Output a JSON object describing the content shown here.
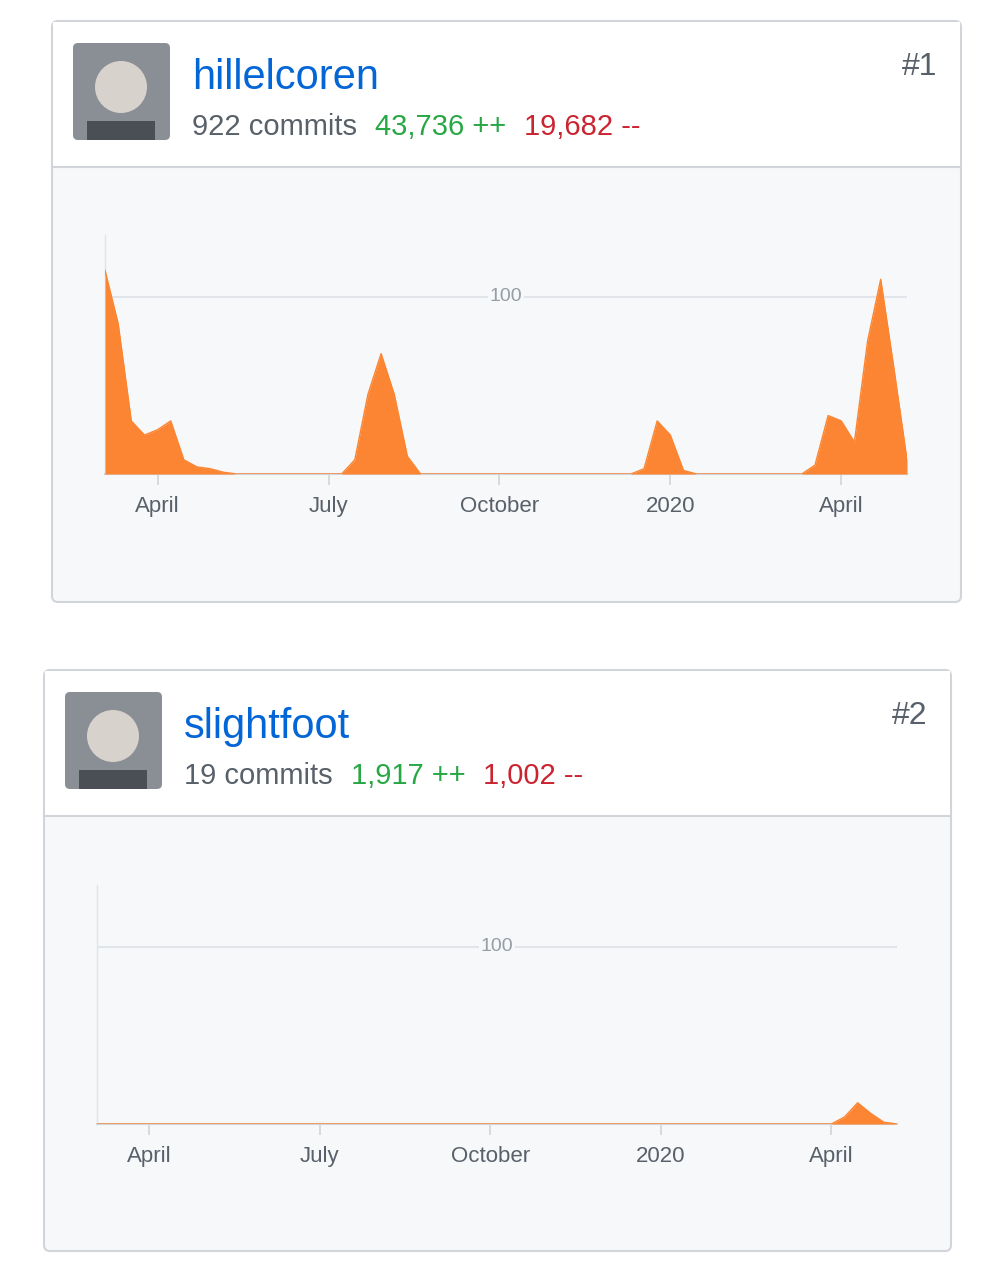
{
  "chart_data": [
    {
      "type": "area",
      "title": "hillelcoren",
      "subtitle": "922 commits",
      "annotations": [
        {
          "text": "43,736 ++",
          "color": "#28a745"
        },
        {
          "text": "19,682 --",
          "color": "#cb2431"
        },
        {
          "text": "#1"
        }
      ],
      "categories": [
        null,
        null,
        null,
        null,
        "April",
        null,
        null,
        null,
        null,
        null,
        null,
        null,
        null,
        null,
        null,
        null,
        null,
        "July",
        null,
        null,
        null,
        null,
        null,
        null,
        null,
        null,
        null,
        null,
        null,
        null,
        "October",
        null,
        null,
        null,
        null,
        null,
        null,
        null,
        null,
        null,
        null,
        null,
        null,
        "2020",
        null,
        null,
        null,
        null,
        null,
        null,
        null,
        null,
        null,
        null,
        null,
        null,
        "April",
        null,
        null,
        null,
        null,
        null
      ],
      "values": [
        115,
        85,
        30,
        22,
        25,
        30,
        8,
        4,
        3,
        1,
        0,
        0,
        0,
        0,
        0,
        0,
        0,
        0,
        0,
        8,
        45,
        68,
        45,
        10,
        0,
        0,
        0,
        0,
        0,
        0,
        0,
        0,
        0,
        0,
        0,
        0,
        0,
        0,
        0,
        0,
        0,
        3,
        30,
        22,
        2,
        0,
        0,
        0,
        0,
        0,
        0,
        0,
        0,
        0,
        5,
        33,
        30,
        18,
        75,
        110,
        60,
        8
      ],
      "color": "#fb8532",
      "ylim": [
        0,
        135
      ],
      "yticks": [
        100
      ],
      "grid": true
    },
    {
      "type": "area",
      "title": "slightfoot",
      "subtitle": "19 commits",
      "annotations": [
        {
          "text": "1,917 ++",
          "color": "#28a745"
        },
        {
          "text": "1,002 --",
          "color": "#cb2431"
        },
        {
          "text": "#2"
        }
      ],
      "categories": [
        null,
        null,
        null,
        null,
        "April",
        null,
        null,
        null,
        null,
        null,
        null,
        null,
        null,
        null,
        null,
        null,
        null,
        "July",
        null,
        null,
        null,
        null,
        null,
        null,
        null,
        null,
        null,
        null,
        null,
        null,
        "October",
        null,
        null,
        null,
        null,
        null,
        null,
        null,
        null,
        null,
        null,
        null,
        null,
        "2020",
        null,
        null,
        null,
        null,
        null,
        null,
        null,
        null,
        null,
        null,
        null,
        null,
        "April",
        null,
        null,
        null,
        null,
        null
      ],
      "values": [
        0,
        0,
        0,
        0,
        0,
        0,
        0,
        0,
        0,
        0,
        0,
        0,
        0,
        0,
        0,
        0,
        0,
        0,
        0,
        0,
        0,
        0,
        0,
        0,
        0,
        0,
        0,
        0,
        0,
        0,
        0,
        0,
        0,
        0,
        0,
        0,
        0,
        0,
        0,
        0,
        0,
        0,
        0,
        0,
        0,
        0,
        0,
        0,
        0,
        0,
        0,
        0,
        0,
        0,
        0,
        0,
        0,
        4,
        12,
        6,
        1,
        0
      ],
      "color": "#fb8532",
      "ylim": [
        0,
        135
      ],
      "yticks": [
        100
      ],
      "grid": true
    }
  ]
}
